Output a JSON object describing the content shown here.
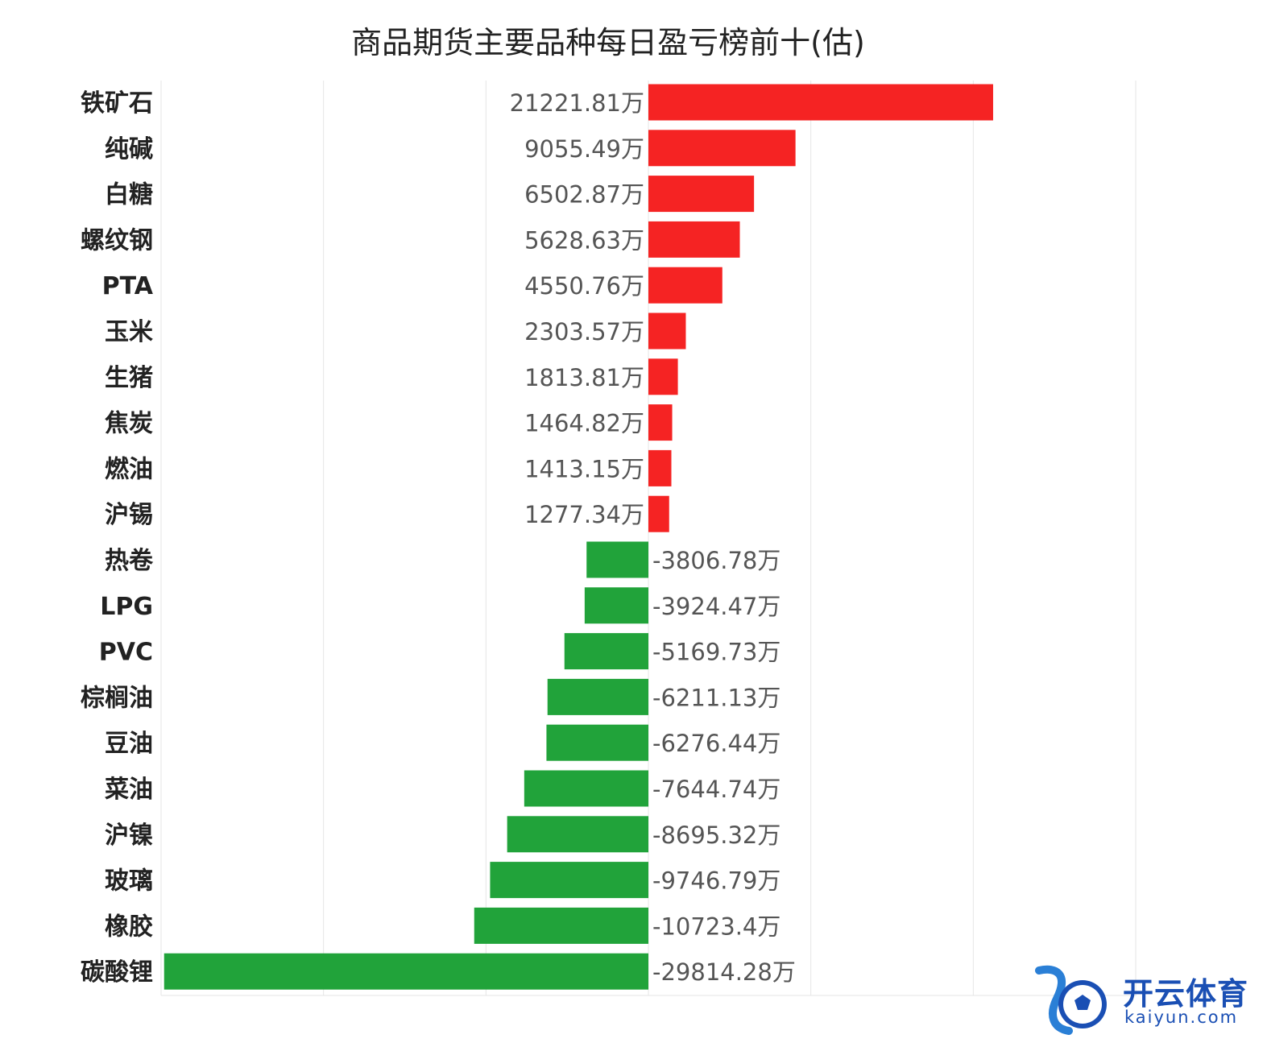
{
  "chart_data": {
    "type": "bar",
    "orientation": "horizontal",
    "title": "商品期货主要品种每日盈亏榜前十(估)",
    "unit_suffix": "万",
    "categories": [
      "铁矿石",
      "纯碱",
      "白糖",
      "螺纹钢",
      "PTA",
      "玉米",
      "生猪",
      "焦炭",
      "燃油",
      "沪锡",
      "热卷",
      "LPG",
      "PVC",
      "棕榈油",
      "豆油",
      "菜油",
      "沪镍",
      "玻璃",
      "橡胶",
      "碳酸锂"
    ],
    "values": [
      21221.81,
      9055.49,
      6502.87,
      5628.63,
      4550.76,
      2303.57,
      1813.81,
      1464.82,
      1413.15,
      1277.34,
      -3806.78,
      -3924.47,
      -5169.73,
      -6211.13,
      -6276.44,
      -7644.74,
      -8695.32,
      -9746.79,
      -10723.4,
      -29814.28
    ],
    "value_labels": [
      "21221.81万",
      "9055.49万",
      "6502.87万",
      "5628.63万",
      "4550.76万",
      "2303.57万",
      "1813.81万",
      "1464.82万",
      "1413.15万",
      "1277.34万",
      "-3806.78万",
      "-3924.47万",
      "-5169.73万",
      "-6211.13万",
      "-6276.44万",
      "-7644.74万",
      "-8695.32万",
      "-9746.79万",
      "-10723.4万",
      "-29814.28万"
    ],
    "xlim": [
      -30000,
      30000
    ],
    "gridlines": [
      -20000,
      -10000,
      0,
      10000,
      20000,
      30000
    ],
    "grid": true,
    "colors": {
      "positive": "#f52323",
      "negative": "#21a33a",
      "grid": "#e6e6e6"
    }
  },
  "watermark": {
    "brand": "开云体育",
    "domain": "kaiyun.com",
    "color": "#1a4fb4"
  }
}
